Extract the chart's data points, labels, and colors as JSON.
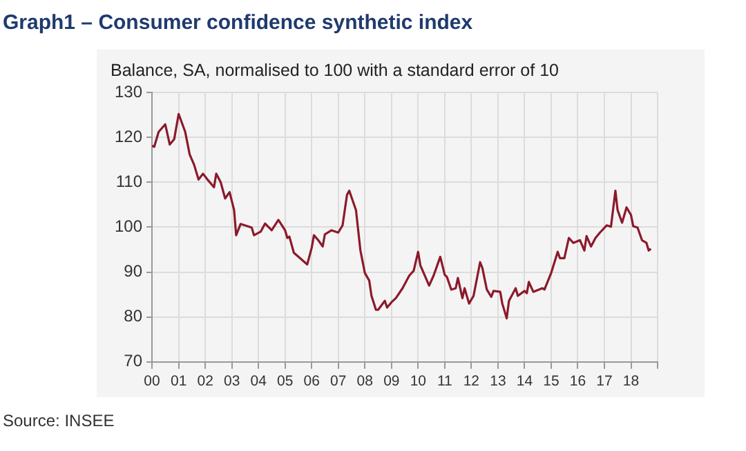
{
  "chart_data": {
    "type": "line",
    "title": "Graph1 – Consumer confidence synthetic index",
    "subtitle": "Balance, SA, normalised to 100 with a standard error of 10",
    "annotations": [
      "Source: INSEE"
    ],
    "x": [
      "2000-01",
      "2000-02",
      "2000-04",
      "2000-07",
      "2000-09",
      "2000-11",
      "2001-01",
      "2001-04",
      "2001-06",
      "2001-08",
      "2001-10",
      "2001-12",
      "2002-02",
      "2002-05",
      "2002-06",
      "2002-08",
      "2002-10",
      "2002-12",
      "2003-02",
      "2003-03",
      "2003-05",
      "2003-10",
      "2003-11",
      "2004-02",
      "2004-04",
      "2004-07",
      "2004-10",
      "2005-01",
      "2005-02",
      "2005-03",
      "2005-05",
      "2005-11",
      "2006-01",
      "2006-02",
      "2006-04",
      "2006-06",
      "2006-07",
      "2006-10",
      "2007-01",
      "2007-03",
      "2007-05",
      "2007-06",
      "2007-09",
      "2007-11",
      "2008-01",
      "2008-03",
      "2008-04",
      "2008-06",
      "2008-07",
      "2008-10",
      "2008-11",
      "2009-01",
      "2009-03",
      "2009-06",
      "2009-09",
      "2009-11",
      "2010-01",
      "2010-02",
      "2010-06",
      "2010-08",
      "2010-11",
      "2011-01",
      "2011-02",
      "2011-04",
      "2011-06",
      "2011-07",
      "2011-09",
      "2011-10",
      "2011-12",
      "2012-02",
      "2012-05",
      "2012-06",
      "2012-08",
      "2012-10",
      "2012-11",
      "2013-02",
      "2013-03",
      "2013-05",
      "2013-06",
      "2013-09",
      "2013-10",
      "2014-01",
      "2014-02",
      "2014-03",
      "2014-05",
      "2014-09",
      "2014-10",
      "2015-01",
      "2015-04",
      "2015-05",
      "2015-07",
      "2015-09",
      "2015-11",
      "2016-02",
      "2016-04",
      "2016-05",
      "2016-07",
      "2016-09",
      "2016-11",
      "2017-02",
      "2017-04",
      "2017-06",
      "2017-07",
      "2017-09",
      "2017-11",
      "2018-01",
      "2018-02",
      "2018-04",
      "2018-06",
      "2018-08",
      "2018-09",
      "2018-10"
    ],
    "series": [
      {
        "color": "#8b1a2b",
        "values": [
          118.1,
          117.9,
          121.2,
          122.9,
          118.4,
          119.6,
          125.2,
          121.2,
          116.2,
          113.9,
          110.6,
          111.9,
          110.6,
          108.9,
          111.9,
          110.0,
          106.4,
          107.8,
          103.8,
          98.2,
          100.7,
          99.9,
          98.2,
          99.0,
          100.8,
          99.3,
          101.6,
          99.3,
          97.6,
          97.9,
          94.3,
          91.7,
          95.4,
          98.2,
          97.1,
          95.7,
          98.4,
          99.3,
          98.8,
          100.4,
          107.2,
          108.1,
          103.8,
          94.8,
          89.8,
          88.1,
          84.7,
          81.6,
          81.6,
          83.6,
          82.1,
          83.3,
          84.2,
          86.4,
          89.2,
          90.3,
          94.5,
          91.5,
          87.0,
          89.2,
          93.4,
          89.4,
          88.9,
          86.1,
          86.4,
          88.7,
          84.2,
          86.4,
          83.0,
          84.7,
          92.2,
          90.9,
          86.1,
          84.5,
          85.8,
          85.6,
          83.0,
          79.7,
          83.6,
          86.4,
          84.7,
          85.8,
          85.3,
          87.8,
          85.6,
          86.4,
          86.1,
          89.8,
          94.5,
          93.1,
          93.1,
          97.6,
          96.5,
          97.1,
          94.8,
          98.0,
          95.7,
          97.6,
          98.8,
          100.4,
          100.1,
          108.1,
          103.8,
          101.0,
          104.4,
          102.7,
          100.2,
          99.9,
          97.1,
          96.5,
          94.8,
          95.2
        ]
      }
    ],
    "xlim": [
      "2000-01",
      "2019-01"
    ],
    "xticks": [
      {
        "value": "2000",
        "label": "00"
      },
      {
        "value": "2001",
        "label": "01"
      },
      {
        "value": "2002",
        "label": "02"
      },
      {
        "value": "2003",
        "label": "03"
      },
      {
        "value": "2004",
        "label": "04"
      },
      {
        "value": "2005",
        "label": "05"
      },
      {
        "value": "2006",
        "label": "06"
      },
      {
        "value": "2007",
        "label": "07"
      },
      {
        "value": "2008",
        "label": "08"
      },
      {
        "value": "2009",
        "label": "09"
      },
      {
        "value": "2010",
        "label": "10"
      },
      {
        "value": "2011",
        "label": "11"
      },
      {
        "value": "2012",
        "label": "12"
      },
      {
        "value": "2013",
        "label": "13"
      },
      {
        "value": "2014",
        "label": "14"
      },
      {
        "value": "2015",
        "label": "15"
      },
      {
        "value": "2016",
        "label": "16"
      },
      {
        "value": "2017",
        "label": "17"
      },
      {
        "value": "2018",
        "label": "18"
      },
      {
        "value": "2019",
        "label": null
      }
    ],
    "ylim": [
      70,
      130
    ],
    "yticks": [
      70,
      80,
      90,
      100,
      110,
      120,
      130
    ],
    "grid": true,
    "legend": false,
    "marker": "none",
    "line_style": "solid"
  }
}
